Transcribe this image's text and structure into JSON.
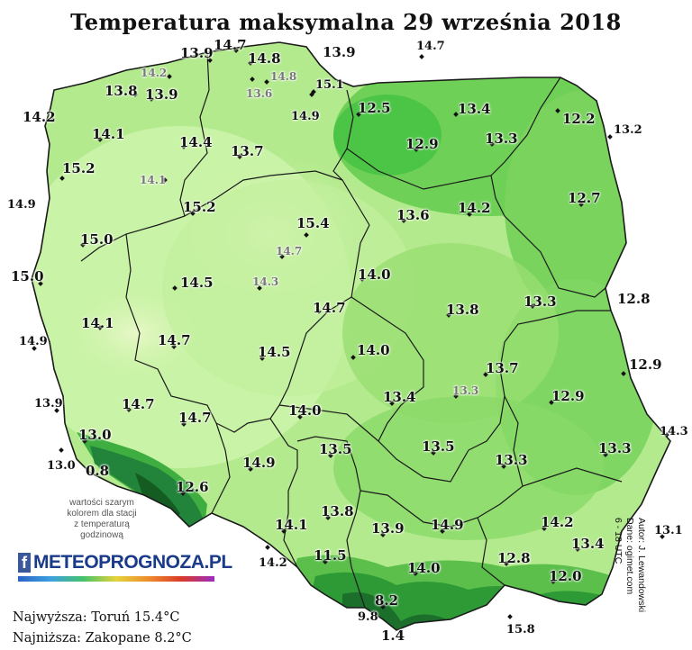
{
  "title": "Temperatura maksymalna 29 września 2018",
  "legend_note": [
    "wartości szarym",
    "kolorem dla stacji",
    "z temperaturą",
    "godzinową"
  ],
  "logo": {
    "icon": "facebook-f-icon",
    "text": "METEOPROGNOZA.PL"
  },
  "stats": {
    "highest": "Najwyższa: Toruń 15.4°C",
    "lowest": "Najniższa: Zakopane 8.2°C"
  },
  "credits": [
    "Autor: J. Lewandowski",
    "Dane: ogimet.com",
    "6 - 18 UTC"
  ],
  "colors": {
    "light": "#c6f2a2",
    "mid": "#8fdc6a",
    "dark": "#3dbb3a",
    "mountain": "#1f7a2c",
    "border": "#1a1a1a"
  },
  "stations": [
    {
      "id": "s01",
      "value": "13.9"
    },
    {
      "id": "s02",
      "value": "14.7"
    },
    {
      "id": "s03",
      "value": "13.9"
    },
    {
      "id": "s04",
      "value": "14.7"
    },
    {
      "id": "s05",
      "value": "14.2"
    },
    {
      "id": "s06",
      "value": "14.8"
    },
    {
      "id": "s07",
      "value": "14.8"
    },
    {
      "id": "s08",
      "value": "13.8"
    },
    {
      "id": "s09",
      "value": "13.9"
    },
    {
      "id": "s10",
      "value": "13.6"
    },
    {
      "id": "s11",
      "value": "15.1"
    },
    {
      "id": "s12",
      "value": "14.2"
    },
    {
      "id": "s13",
      "value": "12.5"
    },
    {
      "id": "s14",
      "value": "13.4"
    },
    {
      "id": "s15",
      "value": "12.2"
    },
    {
      "id": "s16",
      "value": "14.9"
    },
    {
      "id": "s17",
      "value": "13.2"
    },
    {
      "id": "s18",
      "value": "14.1"
    },
    {
      "id": "s19",
      "value": "14.4"
    },
    {
      "id": "s20",
      "value": "12.9"
    },
    {
      "id": "s21",
      "value": "13.3"
    },
    {
      "id": "s22",
      "value": "13.7"
    },
    {
      "id": "s23",
      "value": "15.2"
    },
    {
      "id": "s24",
      "value": "14.1"
    },
    {
      "id": "s25",
      "value": "12.7"
    },
    {
      "id": "s26",
      "value": "14.9"
    },
    {
      "id": "s27",
      "value": "15.2"
    },
    {
      "id": "s28",
      "value": "13.6"
    },
    {
      "id": "s29",
      "value": "14.2"
    },
    {
      "id": "s30",
      "value": "15.4"
    },
    {
      "id": "s31",
      "value": "15.0"
    },
    {
      "id": "s32",
      "value": "14.7"
    },
    {
      "id": "s33",
      "value": "15.0"
    },
    {
      "id": "s34",
      "value": "14.0"
    },
    {
      "id": "s35",
      "value": "14.5"
    },
    {
      "id": "s36",
      "value": "14.3"
    },
    {
      "id": "s37",
      "value": "12.8"
    },
    {
      "id": "s38",
      "value": "13.3"
    },
    {
      "id": "s39",
      "value": "14.1"
    },
    {
      "id": "s40",
      "value": "14.7"
    },
    {
      "id": "s41",
      "value": "13.8"
    },
    {
      "id": "s42",
      "value": "14.9"
    },
    {
      "id": "s43",
      "value": "14.7"
    },
    {
      "id": "s44",
      "value": "12.9"
    },
    {
      "id": "s45",
      "value": "14.5"
    },
    {
      "id": "s46",
      "value": "14.0"
    },
    {
      "id": "s47",
      "value": "13.7"
    },
    {
      "id": "s48",
      "value": "13.4"
    },
    {
      "id": "s49",
      "value": "13.3"
    },
    {
      "id": "s50",
      "value": "12.9"
    },
    {
      "id": "s51",
      "value": "13.9"
    },
    {
      "id": "s52",
      "value": "14.7"
    },
    {
      "id": "s53",
      "value": "14.0"
    },
    {
      "id": "s54",
      "value": "14.7"
    },
    {
      "id": "s55",
      "value": "14.3"
    },
    {
      "id": "s56",
      "value": "13.0"
    },
    {
      "id": "s57",
      "value": "13.5"
    },
    {
      "id": "s58",
      "value": "13.5"
    },
    {
      "id": "s59",
      "value": "13.3"
    },
    {
      "id": "s60",
      "value": "13.3"
    },
    {
      "id": "s61",
      "value": "13.0"
    },
    {
      "id": "s62",
      "value": "0.8"
    },
    {
      "id": "s63",
      "value": "14.9"
    },
    {
      "id": "s64",
      "value": "12.6"
    },
    {
      "id": "s65",
      "value": "13.8"
    },
    {
      "id": "s66",
      "value": "14.1"
    },
    {
      "id": "s67",
      "value": "13.9"
    },
    {
      "id": "s68",
      "value": "14.9"
    },
    {
      "id": "s69",
      "value": "14.2"
    },
    {
      "id": "s70",
      "value": "13.1"
    },
    {
      "id": "s71",
      "value": "14.2"
    },
    {
      "id": "s72",
      "value": "11.5"
    },
    {
      "id": "s73",
      "value": "12.8"
    },
    {
      "id": "s74",
      "value": "13.4"
    },
    {
      "id": "s75",
      "value": "14.0"
    },
    {
      "id": "s76",
      "value": "12.0"
    },
    {
      "id": "s77",
      "value": "8.2"
    },
    {
      "id": "s78",
      "value": "9.8"
    },
    {
      "id": "s79",
      "value": "1.4"
    },
    {
      "id": "s80",
      "value": "15.8"
    }
  ]
}
